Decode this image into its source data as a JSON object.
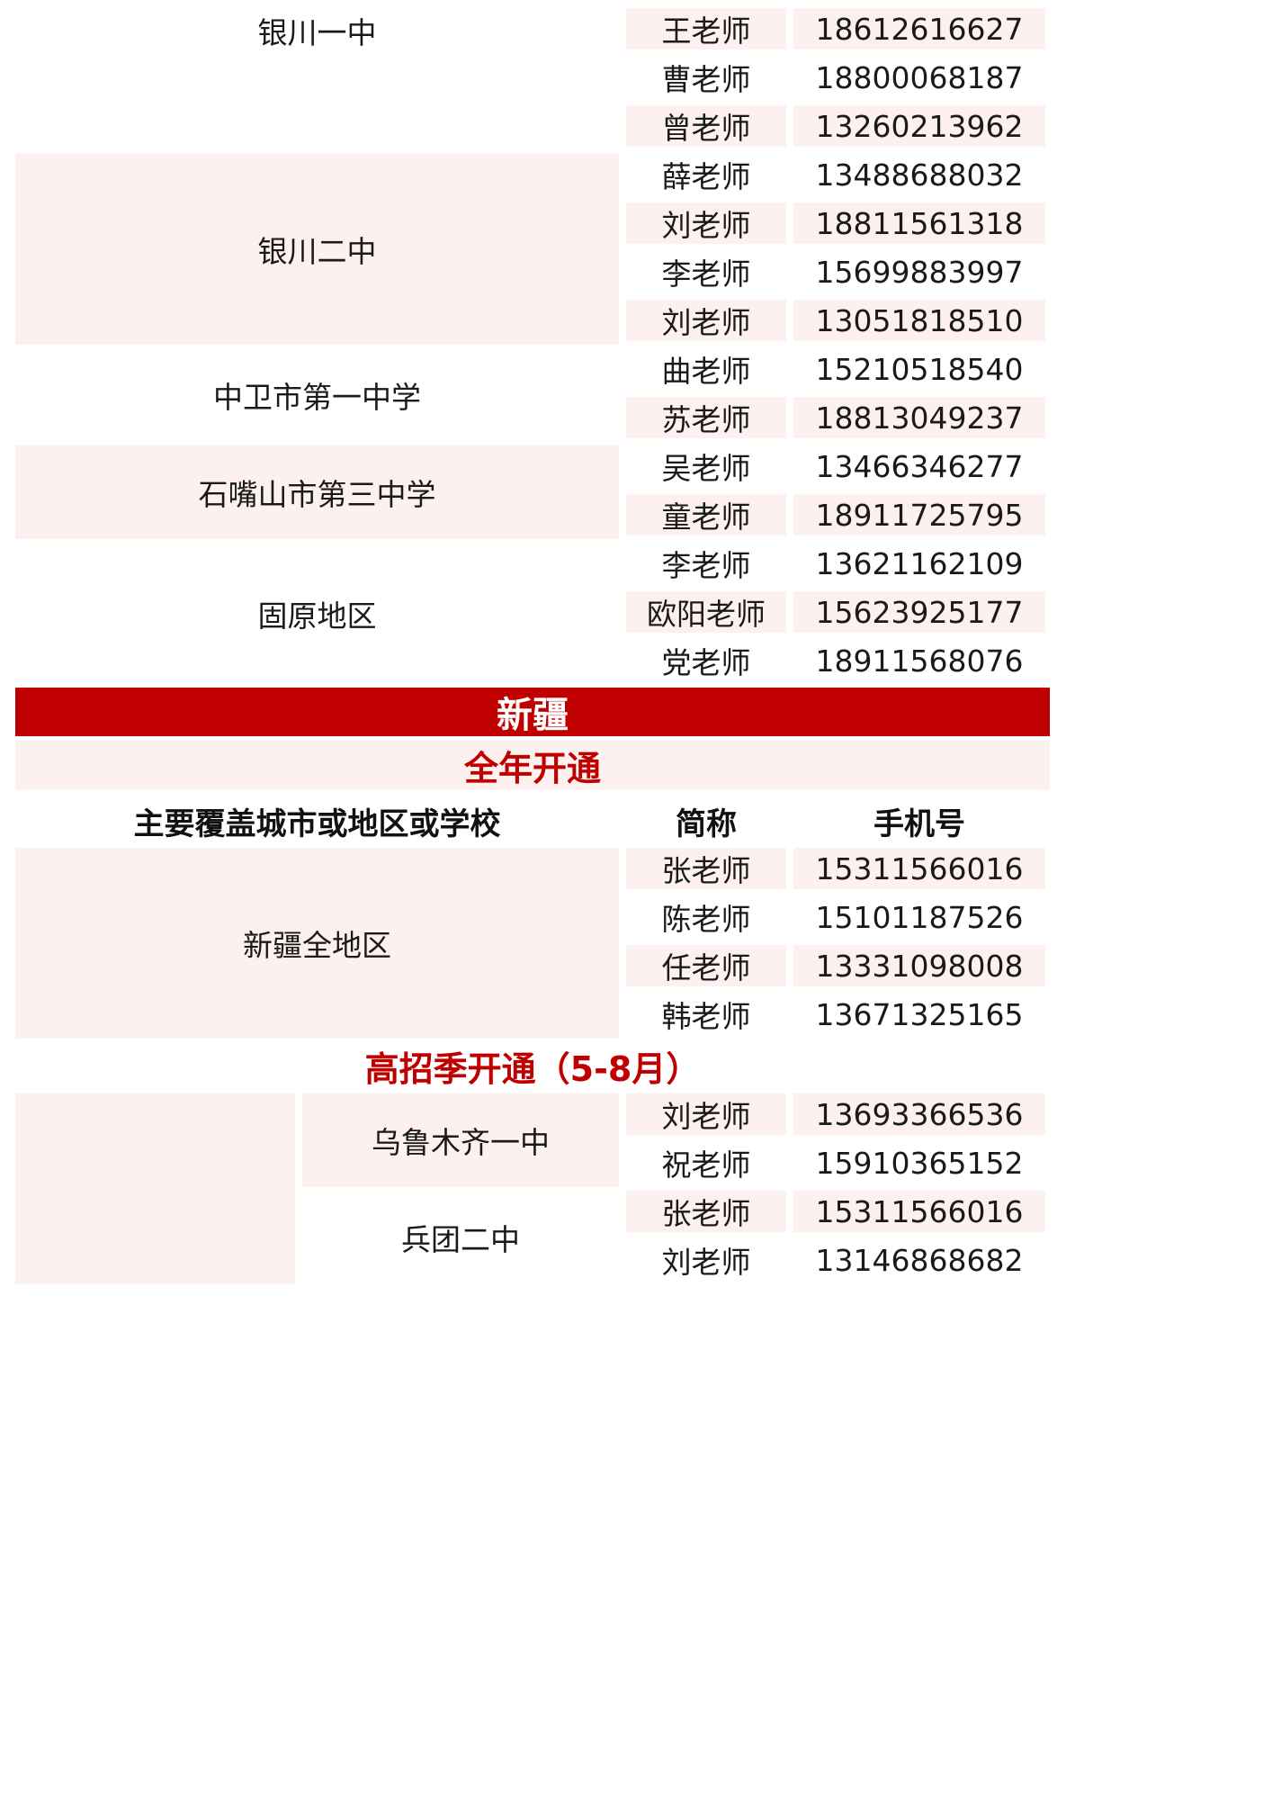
{
  "ningxia": {
    "groups": [
      {
        "school": "银川一中",
        "contacts": [
          {
            "name": "王老师",
            "phone": "18612616627"
          },
          {
            "name": "曹老师",
            "phone": "18800068187"
          },
          {
            "name": "曾老师",
            "phone": "13260213962"
          }
        ]
      },
      {
        "school": "银川二中",
        "contacts": [
          {
            "name": "薛老师",
            "phone": "13488688032"
          },
          {
            "name": "刘老师",
            "phone": "18811561318"
          },
          {
            "name": "李老师",
            "phone": "15699883997"
          },
          {
            "name": "刘老师",
            "phone": "13051818510"
          }
        ]
      },
      {
        "school": "中卫市第一中学",
        "contacts": [
          {
            "name": "曲老师",
            "phone": "15210518540"
          },
          {
            "name": "苏老师",
            "phone": "18813049237"
          }
        ]
      },
      {
        "school": "石嘴山市第三中学",
        "contacts": [
          {
            "name": "吴老师",
            "phone": "13466346277"
          },
          {
            "name": "童老师",
            "phone": "18911725795"
          }
        ]
      },
      {
        "school": "固原地区",
        "contacts": [
          {
            "name": "李老师",
            "phone": "13621162109"
          },
          {
            "name": "欧阳老师",
            "phone": "15623925177"
          },
          {
            "name": "党老师",
            "phone": "18911568076"
          }
        ]
      }
    ]
  },
  "xinjiang": {
    "title": "新疆",
    "year_round_label": "全年开通",
    "headers": {
      "school": "主要覆盖城市或地区或学校",
      "name": "简称",
      "phone": "手机号"
    },
    "year_round_groups": [
      {
        "school": "新疆全地区",
        "contacts": [
          {
            "name": "张老师",
            "phone": "15311566016"
          },
          {
            "name": "陈老师",
            "phone": "15101187526"
          },
          {
            "name": "任老师",
            "phone": "13331098008"
          },
          {
            "name": "韩老师",
            "phone": "13671325165"
          }
        ]
      }
    ],
    "season_label": "高招季开通（5-8月）",
    "season_groups": [
      {
        "school": "乌鲁木齐一中",
        "contacts": [
          {
            "name": "刘老师",
            "phone": "13693366536"
          },
          {
            "name": "祝老师",
            "phone": "15910365152"
          }
        ]
      },
      {
        "school": "兵团二中",
        "contacts": [
          {
            "name": "张老师",
            "phone": "15311566016"
          },
          {
            "name": "刘老师",
            "phone": "13146868682"
          }
        ]
      }
    ]
  },
  "colors": {
    "accent": "#c00000",
    "stripe": "#fdf1ef"
  }
}
